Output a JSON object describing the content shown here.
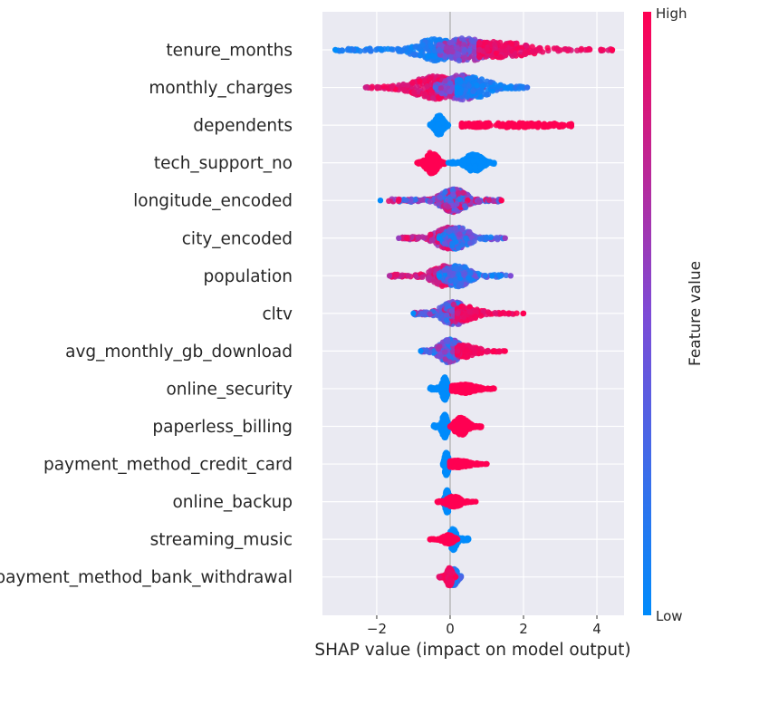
{
  "chart_data": {
    "type": "scatter",
    "subtype": "shap-beeswarm",
    "title": "",
    "xlabel": "SHAP value (impact on model output)",
    "ylabel": "",
    "xlim": [
      -3.48,
      4.74
    ],
    "xticks": [
      -2,
      0,
      2,
      4
    ],
    "xtick_labels": [
      "−2",
      "0",
      "2",
      "4"
    ],
    "grid": true,
    "colorbar": {
      "label": "Feature value",
      "high_label": "High",
      "low_label": "Low",
      "low_color": "#008bfb",
      "high_color": "#ff0052"
    },
    "features": [
      {
        "name": "tenure_months",
        "min": -3.13,
        "max": 4.42,
        "segments": [
          {
            "from": -3.13,
            "to": -0.1,
            "peak": -0.4,
            "width": 0.55,
            "spread": 12,
            "color": [
              0.0,
              0.2
            ],
            "n": 230
          },
          {
            "from": -0.3,
            "to": 1.6,
            "peak": 0.4,
            "width": 0.6,
            "spread": 13,
            "color": [
              0.3,
              0.75
            ],
            "n": 230
          },
          {
            "from": 0.8,
            "to": 4.42,
            "peak": 1.2,
            "width": 1.0,
            "spread": 9,
            "color": [
              0.85,
              1.0
            ],
            "n": 200
          }
        ]
      },
      {
        "name": "monthly_charges",
        "min": -2.3,
        "max": 2.1,
        "segments": [
          {
            "from": -2.3,
            "to": 0.2,
            "peak": -0.3,
            "width": 0.7,
            "spread": 13,
            "color": [
              0.8,
              1.0
            ],
            "n": 240
          },
          {
            "from": -0.4,
            "to": 0.9,
            "peak": 0.3,
            "width": 0.5,
            "spread": 14,
            "color": [
              0.3,
              0.8
            ],
            "n": 220
          },
          {
            "from": 0.2,
            "to": 2.1,
            "peak": 0.6,
            "width": 0.5,
            "spread": 12,
            "color": [
              0.0,
              0.2
            ],
            "n": 160
          }
        ]
      },
      {
        "name": "dependents",
        "min": -0.55,
        "max": 3.3,
        "segments": [
          {
            "from": -0.55,
            "to": -0.05,
            "peak": -0.3,
            "width": 0.12,
            "spread": 11,
            "color": [
              0.0,
              0.0
            ],
            "n": 200
          },
          {
            "from": 0.32,
            "to": 3.3,
            "peak": 1.5,
            "width": 2.0,
            "spread": 2.5,
            "color": [
              1.0,
              1.0
            ],
            "n": 220
          }
        ]
      },
      {
        "name": "tech_support_no",
        "min": -0.9,
        "max": 1.2,
        "segments": [
          {
            "from": -0.9,
            "to": -0.15,
            "peak": -0.5,
            "width": 0.16,
            "spread": 12,
            "color": [
              1.0,
              1.0
            ],
            "n": 240
          },
          {
            "from": -0.05,
            "to": 1.2,
            "peak": 0.65,
            "width": 0.22,
            "spread": 10,
            "color": [
              0.0,
              0.0
            ],
            "n": 260
          }
        ]
      },
      {
        "name": "longitude_encoded",
        "min": -1.9,
        "max": 1.4,
        "segments": [
          {
            "from": -1.9,
            "to": 1.4,
            "peak": 0.1,
            "width": 0.35,
            "spread": 13,
            "color": [
              0.0,
              1.0
            ],
            "n": 420
          }
        ]
      },
      {
        "name": "city_encoded",
        "min": -1.4,
        "max": 1.5,
        "segments": [
          {
            "from": -1.4,
            "to": 0.6,
            "peak": 0.0,
            "width": 0.4,
            "spread": 12,
            "color": [
              0.6,
              1.0
            ],
            "n": 240
          },
          {
            "from": -0.3,
            "to": 1.5,
            "peak": 0.2,
            "width": 0.35,
            "spread": 12,
            "color": [
              0.0,
              0.6
            ],
            "n": 200
          }
        ]
      },
      {
        "name": "population",
        "min": -1.65,
        "max": 1.65,
        "segments": [
          {
            "from": -1.65,
            "to": 0.3,
            "peak": -0.1,
            "width": 0.4,
            "spread": 12,
            "color": [
              0.7,
              1.0
            ],
            "n": 220
          },
          {
            "from": -0.3,
            "to": 1.65,
            "peak": 0.2,
            "width": 0.35,
            "spread": 12,
            "color": [
              0.0,
              0.5
            ],
            "n": 220
          }
        ]
      },
      {
        "name": "cltv",
        "min": -1.0,
        "max": 2.0,
        "segments": [
          {
            "from": -1.0,
            "to": 0.8,
            "peak": 0.1,
            "width": 0.35,
            "spread": 13,
            "color": [
              0.0,
              0.9
            ],
            "n": 300
          },
          {
            "from": 0.2,
            "to": 2.0,
            "peak": 0.4,
            "width": 0.4,
            "spread": 8,
            "color": [
              0.85,
              1.0
            ],
            "n": 120
          }
        ]
      },
      {
        "name": "avg_monthly_gb_download",
        "min": -0.8,
        "max": 1.5,
        "segments": [
          {
            "from": -0.8,
            "to": 0.7,
            "peak": 0.0,
            "width": 0.3,
            "spread": 13,
            "color": [
              0.0,
              0.7
            ],
            "n": 300
          },
          {
            "from": 0.2,
            "to": 1.5,
            "peak": 0.4,
            "width": 0.35,
            "spread": 7,
            "color": [
              0.9,
              1.0
            ],
            "n": 120
          }
        ]
      },
      {
        "name": "online_security",
        "min": -0.55,
        "max": 1.2,
        "segments": [
          {
            "from": -0.55,
            "to": 0.05,
            "peak": -0.15,
            "width": 0.07,
            "spread": 13,
            "color": [
              0.0,
              0.0
            ],
            "n": 220
          },
          {
            "from": 0.05,
            "to": 1.2,
            "peak": 0.35,
            "width": 0.35,
            "spread": 5,
            "color": [
              1.0,
              1.0
            ],
            "n": 200
          }
        ]
      },
      {
        "name": "paperless_billing",
        "min": -0.45,
        "max": 0.85,
        "segments": [
          {
            "from": -0.45,
            "to": 0.05,
            "peak": -0.15,
            "width": 0.08,
            "spread": 13,
            "color": [
              0.0,
              0.0
            ],
            "n": 220
          },
          {
            "from": 0.0,
            "to": 0.85,
            "peak": 0.3,
            "width": 0.18,
            "spread": 10,
            "color": [
              1.0,
              1.0
            ],
            "n": 220
          }
        ]
      },
      {
        "name": "payment_method_credit_card",
        "min": -0.2,
        "max": 1.0,
        "segments": [
          {
            "from": -0.2,
            "to": 0.05,
            "peak": -0.1,
            "width": 0.06,
            "spread": 13,
            "color": [
              0.0,
              0.0
            ],
            "n": 200
          },
          {
            "from": 0.0,
            "to": 1.0,
            "peak": 0.2,
            "width": 0.35,
            "spread": 4,
            "color": [
              1.0,
              1.0
            ],
            "n": 200
          }
        ]
      },
      {
        "name": "online_backup",
        "min": -0.35,
        "max": 0.7,
        "segments": [
          {
            "from": -0.2,
            "to": 0.05,
            "peak": -0.08,
            "width": 0.06,
            "spread": 13,
            "color": [
              0.0,
              0.0
            ],
            "n": 200
          },
          {
            "from": -0.35,
            "to": 0.7,
            "peak": 0.1,
            "width": 0.2,
            "spread": 6,
            "color": [
              1.0,
              1.0
            ],
            "n": 160
          }
        ]
      },
      {
        "name": "streaming_music",
        "min": -0.55,
        "max": 0.5,
        "segments": [
          {
            "from": -0.15,
            "to": 0.5,
            "peak": 0.08,
            "width": 0.1,
            "spread": 12,
            "color": [
              0.0,
              0.0
            ],
            "n": 180
          },
          {
            "from": -0.55,
            "to": 0.2,
            "peak": -0.05,
            "width": 0.15,
            "spread": 5,
            "color": [
              1.0,
              1.0
            ],
            "n": 140
          }
        ]
      },
      {
        "name": "payment_method_bank_withdrawal",
        "min": -0.3,
        "max": 0.3,
        "segments": [
          {
            "from": -0.1,
            "to": 0.3,
            "peak": 0.1,
            "width": 0.1,
            "spread": 10,
            "color": [
              0.0,
              0.3
            ],
            "n": 160
          },
          {
            "from": -0.3,
            "to": 0.15,
            "peak": -0.02,
            "width": 0.08,
            "spread": 10,
            "color": [
              0.9,
              1.0
            ],
            "n": 160
          }
        ]
      }
    ]
  }
}
